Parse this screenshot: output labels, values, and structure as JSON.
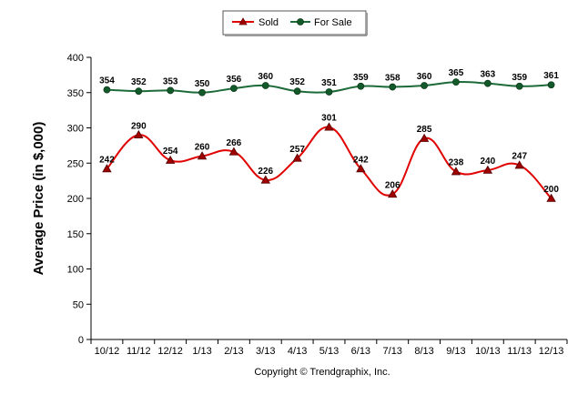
{
  "chart_data": {
    "type": "line",
    "categories": [
      "10/12",
      "11/12",
      "12/12",
      "1/13",
      "2/13",
      "3/13",
      "4/13",
      "5/13",
      "6/13",
      "7/13",
      "8/13",
      "9/13",
      "10/13",
      "11/13",
      "12/13"
    ],
    "series": [
      {
        "name": "Sold",
        "color": "#e00000",
        "marker": "triangle",
        "values": [
          242,
          290,
          254,
          260,
          266,
          226,
          257,
          301,
          242,
          206,
          285,
          238,
          240,
          247,
          200
        ]
      },
      {
        "name": "For Sale",
        "color": "#1d6b38",
        "marker": "circle",
        "values": [
          354,
          352,
          353,
          350,
          356,
          360,
          352,
          351,
          359,
          358,
          360,
          365,
          363,
          359,
          361
        ]
      }
    ],
    "ylabel": "Average Price (in $,000)",
    "ylim": [
      0,
      400
    ],
    "yticks": [
      "0",
      "50",
      "100",
      "150",
      "200",
      "250",
      "300",
      "350",
      "400"
    ],
    "grid": false,
    "legend": "top-center",
    "footer": "Copyright © Trendgraphix, Inc."
  }
}
